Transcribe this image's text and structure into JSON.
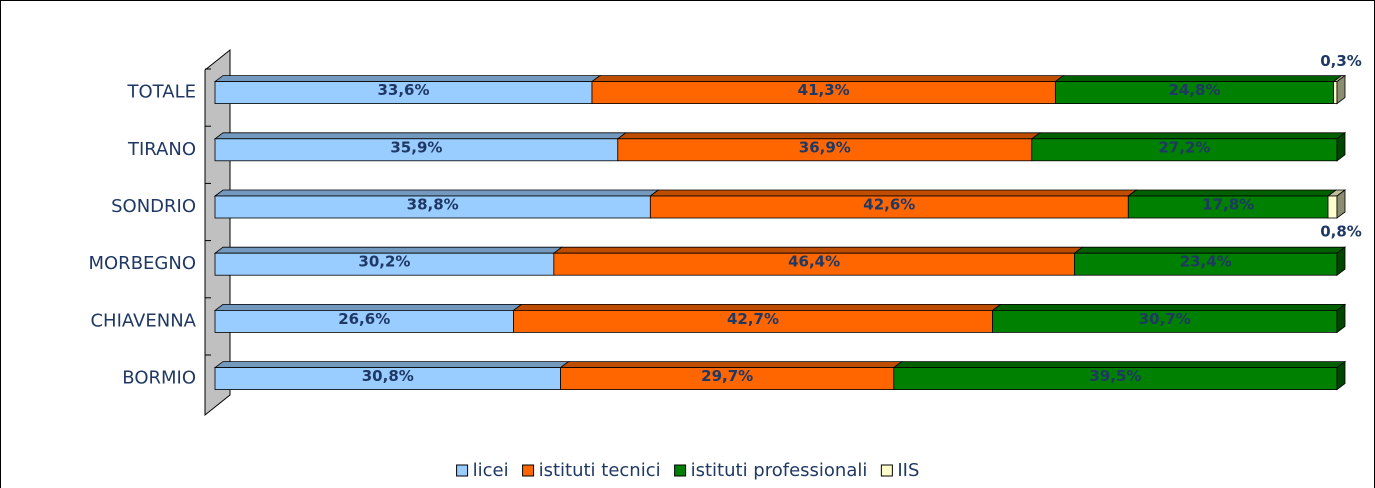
{
  "chart_data": {
    "type": "bar",
    "orientation": "horizontal",
    "stacked": true,
    "categories": [
      "TOTALE",
      "TIRANO",
      "SONDRIO",
      "MORBEGNO",
      "CHIAVENNA",
      "BORMIO"
    ],
    "xlim": [
      0,
      100
    ],
    "series": [
      {
        "name": "licei",
        "color": "#99ccff",
        "values": [
          33.6,
          35.9,
          38.8,
          30.2,
          26.6,
          30.8
        ],
        "value_labels": [
          "33,6%",
          "35,9%",
          "38,8%",
          "30,2%",
          "26,6%",
          "30,8%"
        ]
      },
      {
        "name": "istituti tecnici",
        "color": "#ff6600",
        "values": [
          41.3,
          36.9,
          42.6,
          46.4,
          42.7,
          29.7
        ],
        "value_labels": [
          "41,3%",
          "36,9%",
          "42,6%",
          "46,4%",
          "42,7%",
          "29,7%"
        ]
      },
      {
        "name": "istituti professionali",
        "color": "#008000",
        "values": [
          24.8,
          27.2,
          17.8,
          23.4,
          30.7,
          39.5
        ],
        "value_labels": [
          "24,8%",
          "27,2%",
          "17,8%",
          "23,4%",
          "30,7%",
          "39,5%"
        ]
      },
      {
        "name": "IIS",
        "color": "#ffffcc",
        "values": [
          0.3,
          0,
          0.8,
          0,
          0,
          0
        ],
        "value_labels": [
          "0,3%",
          null,
          "0,8%",
          null,
          null,
          null
        ]
      }
    ],
    "legend": "bottom"
  }
}
